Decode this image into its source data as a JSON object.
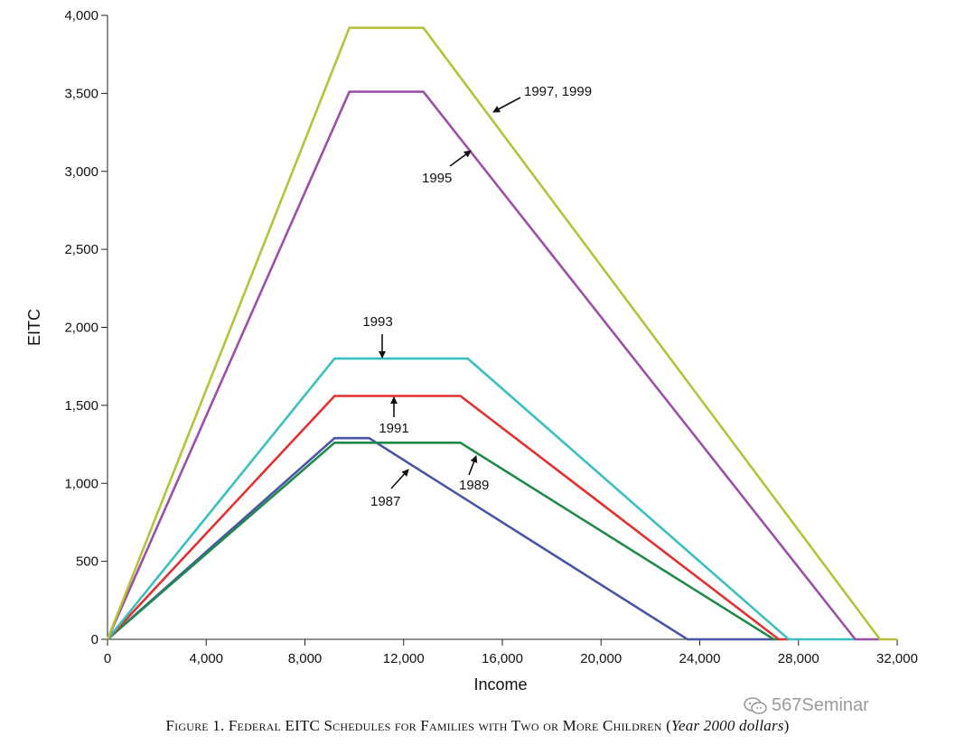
{
  "chart_data": {
    "type": "line",
    "title": "",
    "xlabel": "Income",
    "ylabel": "EITC",
    "xlim": [
      0,
      32000
    ],
    "ylim": [
      0,
      4000
    ],
    "xticks": [
      0,
      4000,
      8000,
      12000,
      16000,
      20000,
      24000,
      28000,
      32000
    ],
    "xtick_labels": [
      "0",
      "4,000",
      "8,000",
      "12,000",
      "16,000",
      "20,000",
      "24,000",
      "28,000",
      "32,000"
    ],
    "yticks": [
      0,
      500,
      1000,
      1500,
      2000,
      2500,
      3000,
      3500,
      4000
    ],
    "ytick_labels": [
      "0",
      "500",
      "1,000",
      "1,500",
      "2,000",
      "2,500",
      "3,000",
      "3,500",
      "4,000"
    ],
    "grid": false,
    "series": [
      {
        "name": "1997, 1999",
        "color": "#b5c23a",
        "x": [
          0,
          9800,
          12800,
          31300,
          32000
        ],
        "y": [
          0,
          3920,
          3920,
          0,
          0
        ]
      },
      {
        "name": "1995",
        "color": "#9b4fa6",
        "x": [
          0,
          9800,
          12800,
          30300,
          31300
        ],
        "y": [
          0,
          3510,
          3510,
          0,
          0
        ]
      },
      {
        "name": "1993",
        "color": "#3bbfbf",
        "x": [
          0,
          9200,
          14600,
          27600,
          30300
        ],
        "y": [
          0,
          1800,
          1800,
          0,
          0
        ]
      },
      {
        "name": "1991",
        "color": "#e0312e",
        "x": [
          0,
          9200,
          14300,
          27200,
          27600
        ],
        "y": [
          0,
          1560,
          1560,
          0,
          0
        ]
      },
      {
        "name": "1989",
        "color": "#1f8a4c",
        "x": [
          0,
          9200,
          14300,
          27000,
          27200
        ],
        "y": [
          0,
          1260,
          1260,
          0,
          0
        ]
      },
      {
        "name": "1987",
        "color": "#4a55a8",
        "x": [
          0,
          9200,
          10600,
          23500,
          27000
        ],
        "y": [
          0,
          1290,
          1290,
          0,
          0
        ]
      }
    ],
    "annotations": [
      {
        "text": "1997, 1999",
        "series": "1997, 1999"
      },
      {
        "text": "1995",
        "series": "1995"
      },
      {
        "text": "1993",
        "series": "1993"
      },
      {
        "text": "1991",
        "series": "1991"
      },
      {
        "text": "1989",
        "series": "1989"
      },
      {
        "text": "1987",
        "series": "1987"
      }
    ]
  },
  "caption": {
    "main": "Figure 1. Federal EITC Schedules for Families with Two or More Children (",
    "italic": "Year 2000 dollars",
    "end": ")"
  },
  "watermark": {
    "text": "567Seminar"
  }
}
